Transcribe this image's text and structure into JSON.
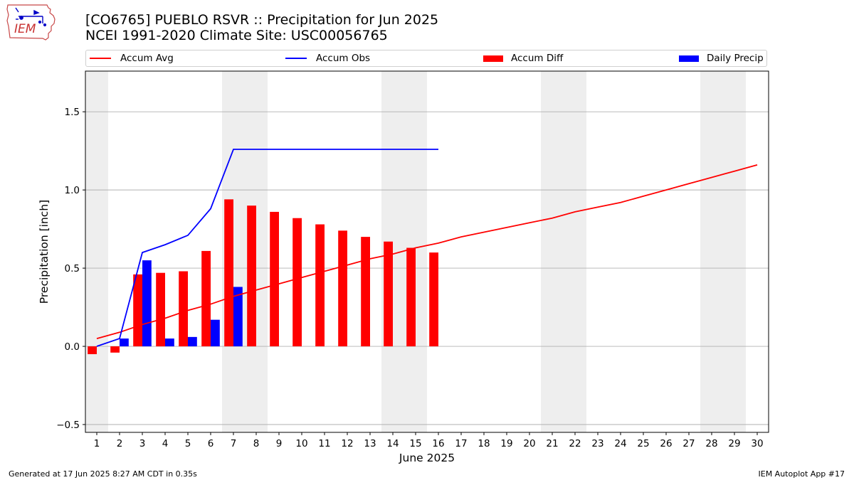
{
  "header": {
    "title_line1": "[CO6765] PUEBLO RSVR :: Precipitation for Jun 2025",
    "title_line2": "NCEI 1991-2020 Climate Site: USC00056765"
  },
  "logo": {
    "text": "IEM"
  },
  "legend": {
    "items": [
      {
        "label": "Accum Avg",
        "kind": "line",
        "color": "#ff0000"
      },
      {
        "label": "Accum Obs",
        "kind": "line",
        "color": "#0000ff"
      },
      {
        "label": "Accum Diff",
        "kind": "box",
        "color": "#ff0000"
      },
      {
        "label": "Daily Precip",
        "kind": "box",
        "color": "#0000ff"
      }
    ]
  },
  "chart_data": {
    "type": "bar",
    "xlabel": "June 2025",
    "ylabel": "Precipitation [inch]",
    "x": [
      1,
      2,
      3,
      4,
      5,
      6,
      7,
      8,
      9,
      10,
      11,
      12,
      13,
      14,
      15,
      16,
      17,
      18,
      19,
      20,
      21,
      22,
      23,
      24,
      25,
      26,
      27,
      28,
      29,
      30
    ],
    "xlim": [
      0.5,
      30.5
    ],
    "ylim": [
      -0.55,
      1.76
    ],
    "yticks": [
      -0.5,
      0.0,
      0.5,
      1.0,
      1.5
    ],
    "ytick_labels": [
      "−0.5",
      "0.0",
      "0.5",
      "1.0",
      "1.5"
    ],
    "grid": "horizontal",
    "weekend_shading": [
      [
        0.5,
        1.5
      ],
      [
        6.5,
        8.5
      ],
      [
        13.5,
        15.5
      ],
      [
        20.5,
        22.5
      ],
      [
        27.5,
        29.5
      ]
    ],
    "series": [
      {
        "name": "Accum Avg",
        "type": "line",
        "color": "#ff0000",
        "x": [
          1,
          2,
          3,
          4,
          5,
          6,
          7,
          8,
          9,
          10,
          11,
          12,
          13,
          14,
          15,
          16,
          17,
          18,
          19,
          20,
          21,
          22,
          23,
          24,
          25,
          26,
          27,
          28,
          29,
          30
        ],
        "values": [
          0.05,
          0.09,
          0.14,
          0.18,
          0.23,
          0.27,
          0.32,
          0.36,
          0.4,
          0.44,
          0.48,
          0.52,
          0.56,
          0.59,
          0.63,
          0.66,
          0.7,
          0.73,
          0.76,
          0.79,
          0.82,
          0.86,
          0.89,
          0.92,
          0.96,
          1.0,
          1.04,
          1.08,
          1.12,
          1.16
        ]
      },
      {
        "name": "Accum Obs",
        "type": "line",
        "color": "#0000ff",
        "x": [
          1,
          2,
          3,
          4,
          5,
          6,
          7,
          8,
          9,
          10,
          11,
          12,
          13,
          14,
          15,
          16
        ],
        "values": [
          0.0,
          0.05,
          0.6,
          0.65,
          0.71,
          0.88,
          1.26,
          1.26,
          1.26,
          1.26,
          1.26,
          1.26,
          1.26,
          1.26,
          1.26,
          1.26
        ]
      },
      {
        "name": "Accum Diff",
        "type": "bar",
        "color": "#ff0000",
        "x": [
          1,
          2,
          3,
          4,
          5,
          6,
          7,
          8,
          9,
          10,
          11,
          12,
          13,
          14,
          15,
          16
        ],
        "values": [
          -0.05,
          -0.04,
          0.46,
          0.47,
          0.48,
          0.61,
          0.94,
          0.9,
          0.86,
          0.82,
          0.78,
          0.74,
          0.7,
          0.67,
          0.63,
          0.6
        ]
      },
      {
        "name": "Daily Precip",
        "type": "bar",
        "color": "#0000ff",
        "x": [
          1,
          2,
          3,
          4,
          5,
          6,
          7,
          8,
          9,
          10,
          11,
          12,
          13,
          14,
          15,
          16
        ],
        "values": [
          0.0,
          0.05,
          0.55,
          0.05,
          0.06,
          0.17,
          0.38,
          0.0,
          0.0,
          0.0,
          0.0,
          0.0,
          0.0,
          0.0,
          0.0,
          0.0
        ]
      }
    ]
  },
  "footer": {
    "left": "Generated at 17 Jun 2025 8:27 AM CDT in 0.35s",
    "right": "IEM Autoplot App #17"
  }
}
